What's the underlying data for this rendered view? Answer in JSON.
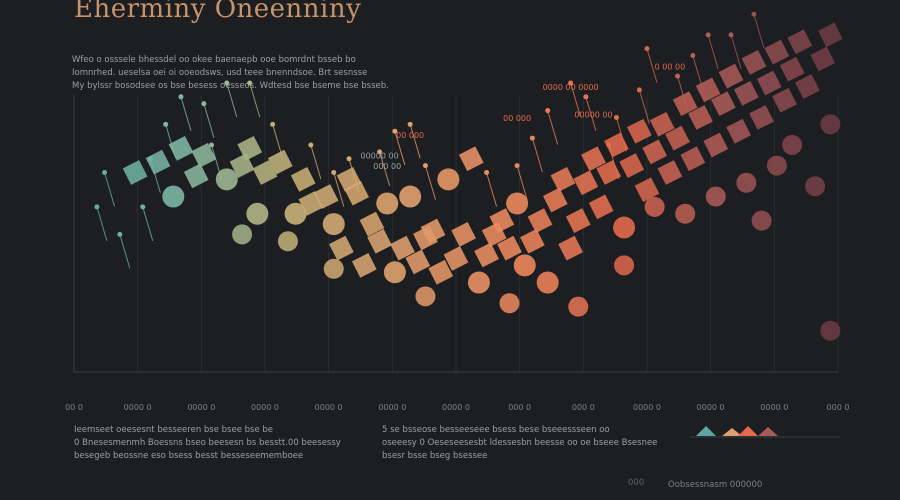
{
  "header": {
    "title": "Eherminy Oneenniny",
    "intro_lines": [
      "Wfeo o osssele bhessdel oo okee baenaepb ooe bomrdnt bsseb bo",
      "Iomnrhed. ueselsa oei oi ooeodsws, usd teee bnenndsoe. Brt sesnsse",
      "My bylssr bosodsee os bse besess oesseos.  Wdtesd bse bseme bse bsseb."
    ]
  },
  "chart_data": {
    "type": "scatter",
    "title": "Eherminy Oneenniny",
    "xlabel": "",
    "ylabel": "",
    "xlim": [
      0,
      100
    ],
    "ylim": [
      0,
      100
    ],
    "grid": true,
    "x_tick_labels": [
      "00 0",
      "0000 0",
      "0000 0",
      "0000 0",
      "0000 0",
      "0000 0",
      "0000 0",
      "000 0",
      "000 0",
      "0000 0",
      "0000 0",
      "0000 0",
      "000 0"
    ],
    "palette": [
      "#5ea7a0",
      "#7fb8a3",
      "#c9b176",
      "#e0a06e",
      "#ee8a5e",
      "#e36a4d",
      "#a85a58",
      "#6a3a44"
    ],
    "series": [
      {
        "name": "main-band",
        "values": [
          {
            "x": 8,
            "y": 58,
            "shape": "d"
          },
          {
            "x": 11,
            "y": 61,
            "shape": "d"
          },
          {
            "x": 13,
            "y": 51,
            "shape": "c"
          },
          {
            "x": 14,
            "y": 65,
            "shape": "d"
          },
          {
            "x": 16,
            "y": 57,
            "shape": "d"
          },
          {
            "x": 17,
            "y": 63,
            "shape": "d"
          },
          {
            "x": 20,
            "y": 56,
            "shape": "c"
          },
          {
            "x": 22,
            "y": 60,
            "shape": "d"
          },
          {
            "x": 23,
            "y": 65,
            "shape": "d"
          },
          {
            "x": 24,
            "y": 46,
            "shape": "c"
          },
          {
            "x": 25,
            "y": 58,
            "shape": "d"
          },
          {
            "x": 27,
            "y": 61,
            "shape": "d"
          },
          {
            "x": 29,
            "y": 46,
            "shape": "c"
          },
          {
            "x": 30,
            "y": 56,
            "shape": "d"
          },
          {
            "x": 31,
            "y": 49,
            "shape": "d"
          },
          {
            "x": 33,
            "y": 51,
            "shape": "d"
          },
          {
            "x": 34,
            "y": 43,
            "shape": "c"
          },
          {
            "x": 35,
            "y": 36,
            "shape": "d"
          },
          {
            "x": 36,
            "y": 56,
            "shape": "d"
          },
          {
            "x": 37,
            "y": 52,
            "shape": "d"
          },
          {
            "x": 38,
            "y": 31,
            "shape": "d"
          },
          {
            "x": 39,
            "y": 43,
            "shape": "d"
          },
          {
            "x": 40,
            "y": 38,
            "shape": "d"
          },
          {
            "x": 41,
            "y": 49,
            "shape": "c"
          },
          {
            "x": 42,
            "y": 29,
            "shape": "c"
          },
          {
            "x": 43,
            "y": 36,
            "shape": "d"
          },
          {
            "x": 44,
            "y": 51,
            "shape": "c"
          },
          {
            "x": 45,
            "y": 32,
            "shape": "d"
          },
          {
            "x": 46,
            "y": 39,
            "shape": "d"
          },
          {
            "x": 47,
            "y": 41,
            "shape": "d"
          },
          {
            "x": 48,
            "y": 29,
            "shape": "d"
          },
          {
            "x": 49,
            "y": 56,
            "shape": "c"
          },
          {
            "x": 50,
            "y": 33,
            "shape": "d"
          },
          {
            "x": 51,
            "y": 40,
            "shape": "d"
          },
          {
            "x": 52,
            "y": 62,
            "shape": "d"
          },
          {
            "x": 53,
            "y": 26,
            "shape": "c"
          },
          {
            "x": 54,
            "y": 34,
            "shape": "d"
          },
          {
            "x": 55,
            "y": 40,
            "shape": "d"
          },
          {
            "x": 56,
            "y": 44,
            "shape": "d"
          },
          {
            "x": 57,
            "y": 36,
            "shape": "d"
          },
          {
            "x": 58,
            "y": 49,
            "shape": "c"
          },
          {
            "x": 59,
            "y": 31,
            "shape": "c"
          },
          {
            "x": 60,
            "y": 38,
            "shape": "d"
          },
          {
            "x": 61,
            "y": 44,
            "shape": "d"
          },
          {
            "x": 62,
            "y": 26,
            "shape": "c"
          },
          {
            "x": 63,
            "y": 50,
            "shape": "d"
          },
          {
            "x": 64,
            "y": 56,
            "shape": "d"
          },
          {
            "x": 65,
            "y": 36,
            "shape": "d"
          },
          {
            "x": 66,
            "y": 44,
            "shape": "d"
          },
          {
            "x": 67,
            "y": 55,
            "shape": "d"
          },
          {
            "x": 68,
            "y": 62,
            "shape": "d"
          },
          {
            "x": 69,
            "y": 48,
            "shape": "d"
          },
          {
            "x": 70,
            "y": 58,
            "shape": "d"
          },
          {
            "x": 71,
            "y": 66,
            "shape": "d"
          },
          {
            "x": 72,
            "y": 42,
            "shape": "c"
          },
          {
            "x": 73,
            "y": 60,
            "shape": "d"
          },
          {
            "x": 74,
            "y": 70,
            "shape": "d"
          },
          {
            "x": 75,
            "y": 53,
            "shape": "d"
          },
          {
            "x": 76,
            "y": 64,
            "shape": "d"
          },
          {
            "x": 77,
            "y": 72,
            "shape": "d"
          },
          {
            "x": 78,
            "y": 58,
            "shape": "d"
          },
          {
            "x": 79,
            "y": 68,
            "shape": "d"
          },
          {
            "x": 80,
            "y": 78,
            "shape": "d"
          },
          {
            "x": 81,
            "y": 62,
            "shape": "d"
          },
          {
            "x": 82,
            "y": 74,
            "shape": "d"
          },
          {
            "x": 83,
            "y": 82,
            "shape": "d"
          },
          {
            "x": 84,
            "y": 66,
            "shape": "d"
          },
          {
            "x": 85,
            "y": 78,
            "shape": "d"
          },
          {
            "x": 86,
            "y": 86,
            "shape": "d"
          },
          {
            "x": 87,
            "y": 70,
            "shape": "d"
          },
          {
            "x": 88,
            "y": 81,
            "shape": "d"
          },
          {
            "x": 89,
            "y": 90,
            "shape": "d"
          },
          {
            "x": 90,
            "y": 74,
            "shape": "d"
          },
          {
            "x": 91,
            "y": 84,
            "shape": "d"
          },
          {
            "x": 92,
            "y": 93,
            "shape": "d"
          },
          {
            "x": 93,
            "y": 79,
            "shape": "d"
          },
          {
            "x": 94,
            "y": 88,
            "shape": "d"
          },
          {
            "x": 95,
            "y": 96,
            "shape": "d"
          },
          {
            "x": 96,
            "y": 83,
            "shape": "d"
          },
          {
            "x": 98,
            "y": 91,
            "shape": "d"
          },
          {
            "x": 99,
            "y": 98,
            "shape": "d"
          }
        ]
      },
      {
        "name": "lower-scatter",
        "values": [
          {
            "x": 22,
            "y": 40,
            "shape": "c"
          },
          {
            "x": 28,
            "y": 38,
            "shape": "c"
          },
          {
            "x": 34,
            "y": 30,
            "shape": "c"
          },
          {
            "x": 46,
            "y": 22,
            "shape": "c"
          },
          {
            "x": 57,
            "y": 20,
            "shape": "c"
          },
          {
            "x": 66,
            "y": 19,
            "shape": "c"
          },
          {
            "x": 72,
            "y": 31,
            "shape": "c"
          },
          {
            "x": 76,
            "y": 48,
            "shape": "c"
          },
          {
            "x": 80,
            "y": 46,
            "shape": "c"
          },
          {
            "x": 84,
            "y": 51,
            "shape": "c"
          },
          {
            "x": 88,
            "y": 55,
            "shape": "c"
          },
          {
            "x": 90,
            "y": 44,
            "shape": "c"
          },
          {
            "x": 92,
            "y": 60,
            "shape": "c"
          },
          {
            "x": 94,
            "y": 66,
            "shape": "c"
          },
          {
            "x": 97,
            "y": 54,
            "shape": "c"
          },
          {
            "x": 99,
            "y": 12,
            "shape": "c"
          },
          {
            "x": 99,
            "y": 72,
            "shape": "c"
          }
        ]
      },
      {
        "name": "pins",
        "values": [
          {
            "x": 3,
            "y": 48
          },
          {
            "x": 4,
            "y": 58
          },
          {
            "x": 6,
            "y": 40
          },
          {
            "x": 9,
            "y": 48
          },
          {
            "x": 10,
            "y": 62
          },
          {
            "x": 12,
            "y": 72
          },
          {
            "x": 14,
            "y": 80
          },
          {
            "x": 17,
            "y": 78
          },
          {
            "x": 18,
            "y": 66
          },
          {
            "x": 20,
            "y": 84
          },
          {
            "x": 23,
            "y": 84
          },
          {
            "x": 26,
            "y": 72
          },
          {
            "x": 31,
            "y": 66
          },
          {
            "x": 34,
            "y": 58
          },
          {
            "x": 36,
            "y": 62
          },
          {
            "x": 40,
            "y": 64
          },
          {
            "x": 42,
            "y": 70
          },
          {
            "x": 44,
            "y": 72
          },
          {
            "x": 46,
            "y": 60
          },
          {
            "x": 54,
            "y": 58
          },
          {
            "x": 58,
            "y": 60
          },
          {
            "x": 60,
            "y": 68
          },
          {
            "x": 62,
            "y": 76
          },
          {
            "x": 65,
            "y": 84
          },
          {
            "x": 67,
            "y": 80
          },
          {
            "x": 70,
            "y": 66
          },
          {
            "x": 71,
            "y": 74
          },
          {
            "x": 74,
            "y": 82
          },
          {
            "x": 75,
            "y": 94
          },
          {
            "x": 79,
            "y": 86
          },
          {
            "x": 81,
            "y": 92
          },
          {
            "x": 83,
            "y": 98
          },
          {
            "x": 86,
            "y": 98
          },
          {
            "x": 89,
            "y": 104
          }
        ]
      }
    ],
    "annotations": [
      {
        "text": "0 00 00",
        "x": 78,
        "y": 88,
        "color": "#e36a4d"
      },
      {
        "text": "0000 00 0000",
        "x": 65,
        "y": 82,
        "color": "#e36a4d"
      },
      {
        "text": "00 000",
        "x": 58,
        "y": 73,
        "color": "#e36a4d"
      },
      {
        "text": "00000 00",
        "x": 68,
        "y": 74,
        "color": "#e36a4d"
      },
      {
        "text": "00 000",
        "x": 44,
        "y": 68,
        "color": "#e36a4d"
      },
      {
        "text": "00000 00",
        "x": 40,
        "y": 62,
        "color": "#9aa0a6"
      },
      {
        "text": "000 00",
        "x": 41,
        "y": 59,
        "color": "#9aa0a6"
      }
    ]
  },
  "legend": {
    "colors": [
      "#5ea7a0",
      "#e0a06e",
      "#e36a4d",
      "#a85a58"
    ]
  },
  "notes": {
    "left_lines": [
      "Ieemseet oeesesnt besseeren bse bsee bse be",
      "0 Bnesesmenmh Boessns bseo beesesn bs besstt.00 beesessy",
      "besegeb beossne eso bsess besst besseseememboee"
    ],
    "right_lines": [
      "5 se bsseose besseeseee bsess bese bseeessseen oo",
      "oseeesy 0 Oeseseesesbt ldessesbn beesse oo oe bseee Bsesnee",
      "bsesr bsse bseg bsessee"
    ],
    "footer_mark": "000",
    "footer_text": "Oobsessnasm 000000"
  }
}
